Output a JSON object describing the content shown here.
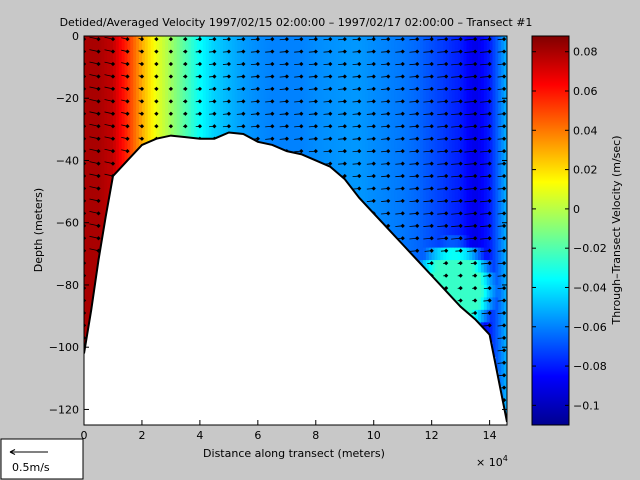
{
  "chart_data": {
    "type": "heatmap",
    "title": "Detided/Averaged Velocity  1997/02/15 02:00:00 – 1997/02/17 02:00:00 – Transect #1",
    "xlabel": "Distance along transect (meters)",
    "x_exponent_label": "× 10",
    "x_exponent_power": "4",
    "ylabel": "Depth (meters)",
    "colorbar_label": "Through–Transect Velocity (m/sec)",
    "xlim": [
      0,
      14.6
    ],
    "ylim": [
      -125,
      0
    ],
    "clim": [
      -0.11,
      0.088
    ],
    "x_ticks": [
      "0",
      "2",
      "4",
      "6",
      "8",
      "10",
      "12",
      "14"
    ],
    "x_tick_values": [
      0,
      2,
      4,
      6,
      8,
      10,
      12,
      14
    ],
    "y_ticks": [
      "0",
      "−20",
      "−40",
      "−60",
      "−80",
      "−100",
      "−120"
    ],
    "y_tick_values": [
      0,
      -20,
      -40,
      -60,
      -80,
      -100,
      -120
    ],
    "colorbar_ticks": [
      "0.08",
      "0.06",
      "0.04",
      "0.02",
      "0",
      "−0.02",
      "−0.04",
      "−0.06",
      "−0.08",
      "−0.1"
    ],
    "colorbar_tick_values": [
      0.08,
      0.06,
      0.04,
      0.02,
      0,
      -0.02,
      -0.04,
      -0.06,
      -0.08,
      -0.1
    ],
    "velocity_profile": {
      "x": [
        0,
        0.5,
        1,
        1.5,
        2,
        2.5,
        3,
        3.5,
        4,
        4.5,
        5,
        5.5,
        6,
        6.5,
        7,
        7.5,
        8,
        8.5,
        9,
        9.5,
        10,
        10.5,
        11,
        11.5,
        12,
        12.5,
        13,
        13.5,
        14,
        14.6
      ],
      "velocity": [
        0.08,
        0.08,
        0.075,
        0.055,
        0.03,
        0.01,
        -0.005,
        -0.02,
        -0.035,
        -0.045,
        -0.05,
        -0.055,
        -0.058,
        -0.06,
        -0.06,
        -0.06,
        -0.058,
        -0.057,
        -0.056,
        -0.056,
        -0.058,
        -0.06,
        -0.062,
        -0.065,
        -0.07,
        -0.075,
        -0.08,
        -0.09,
        -0.08,
        -0.05
      ]
    },
    "bottom_profile": {
      "x": [
        0,
        0.25,
        0.5,
        0.75,
        1,
        1.5,
        2,
        2.5,
        3,
        3.5,
        4,
        4.5,
        5,
        5.5,
        6,
        6.5,
        7,
        7.5,
        8,
        8.5,
        9,
        9.5,
        10,
        10.5,
        11,
        11.5,
        12,
        12.5,
        13,
        13.5,
        14,
        14.3,
        14.6
      ],
      "depth": [
        -102,
        -88,
        -72,
        -58,
        -45,
        -40,
        -35,
        -33,
        -32,
        -32.5,
        -33,
        -33,
        -31,
        -31.5,
        -34,
        -35,
        -37,
        -38,
        -40,
        -42,
        -46,
        -52,
        -57,
        -62,
        -67,
        -72,
        -77,
        -82,
        -87,
        -91,
        -96,
        -110,
        -124
      ]
    },
    "surface_anomaly": {
      "x_range": [
        11.3,
        14.3
      ],
      "depth_range": [
        -98,
        -65
      ],
      "velocity": -0.025
    },
    "quiver_x_spacing": 0.5,
    "quiver_depth_spacing": 4
  },
  "scale_legend": {
    "label": "0.5m/s"
  },
  "colors": {
    "background": "#c8c8c8",
    "axes_face": "#ffffff",
    "arrows": "#000000",
    "bottom_line": "#000000"
  }
}
